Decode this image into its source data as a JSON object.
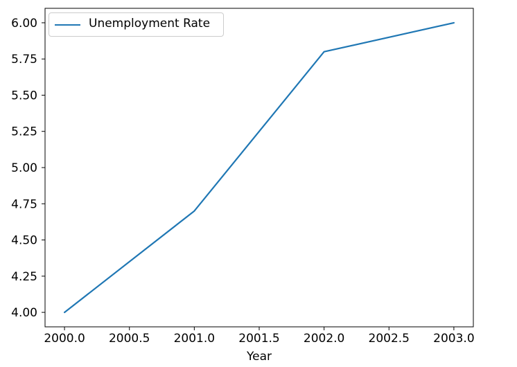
{
  "figure": {
    "background": "#ffffff"
  },
  "chart_data": {
    "type": "line",
    "title": "",
    "xlabel": "Year",
    "ylabel": "",
    "x": [
      2000,
      2001,
      2002,
      2003
    ],
    "series": [
      {
        "name": "Unemployment Rate",
        "values": [
          4.0,
          4.7,
          5.8,
          6.0
        ],
        "color": "#1f77b4"
      }
    ],
    "xlim": [
      1999.85,
      2003.15
    ],
    "ylim": [
      3.9,
      6.1
    ],
    "x_ticks": {
      "values": [
        2000.0,
        2000.5,
        2001.0,
        2001.5,
        2002.0,
        2002.5,
        2003.0
      ],
      "labels": [
        "2000.0",
        "2000.5",
        "2001.0",
        "2001.5",
        "2002.0",
        "2002.5",
        "2003.0"
      ]
    },
    "y_ticks": {
      "values": [
        4.0,
        4.25,
        4.5,
        4.75,
        5.0,
        5.25,
        5.5,
        5.75,
        6.0
      ],
      "labels": [
        "4.00",
        "4.25",
        "4.50",
        "4.75",
        "5.00",
        "5.25",
        "5.50",
        "5.75",
        "6.00"
      ]
    },
    "grid": false,
    "markers": false,
    "legend": {
      "visible": true,
      "position": "upper-left",
      "entries": [
        "Unemployment Rate"
      ]
    },
    "colors": {
      "line": "#1f77b4",
      "axis": "#000000",
      "tick_label": "#000000",
      "legend_border": "#cccccc",
      "background": "#ffffff"
    }
  }
}
